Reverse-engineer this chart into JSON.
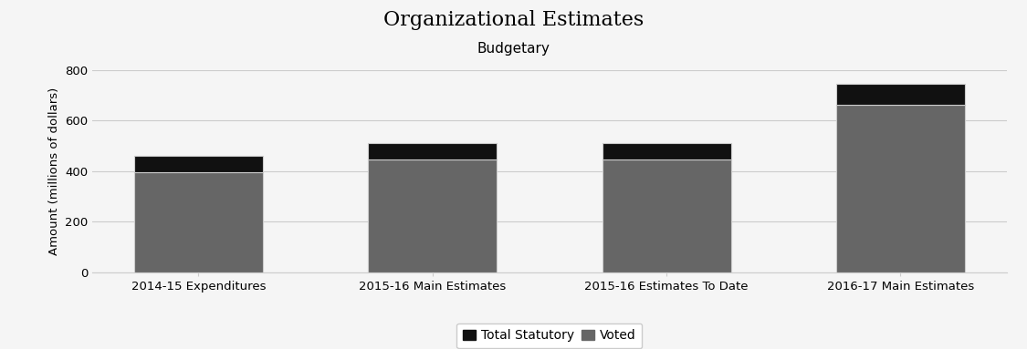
{
  "title": "Organizational Estimates",
  "subtitle": "Budgetary",
  "categories": [
    "2014-15 Expenditures",
    "2015-16 Main Estimates",
    "2015-16 Estimates To Date",
    "2016-17 Main Estimates"
  ],
  "voted_values": [
    395,
    447,
    445,
    660
  ],
  "statutory_values": [
    65,
    63,
    65,
    83
  ],
  "voted_color": "#666666",
  "statutory_color": "#111111",
  "bar_edge_color": "#cccccc",
  "ylabel": "Amount (millions of dollars)",
  "ylim": [
    0,
    800
  ],
  "yticks": [
    0,
    200,
    400,
    600,
    800
  ],
  "background_color": "#f5f5f5",
  "title_fontsize": 16,
  "subtitle_fontsize": 11,
  "legend_labels": [
    "Total Statutory",
    "Voted"
  ],
  "bar_width": 0.55,
  "grid_color": "#cccccc"
}
